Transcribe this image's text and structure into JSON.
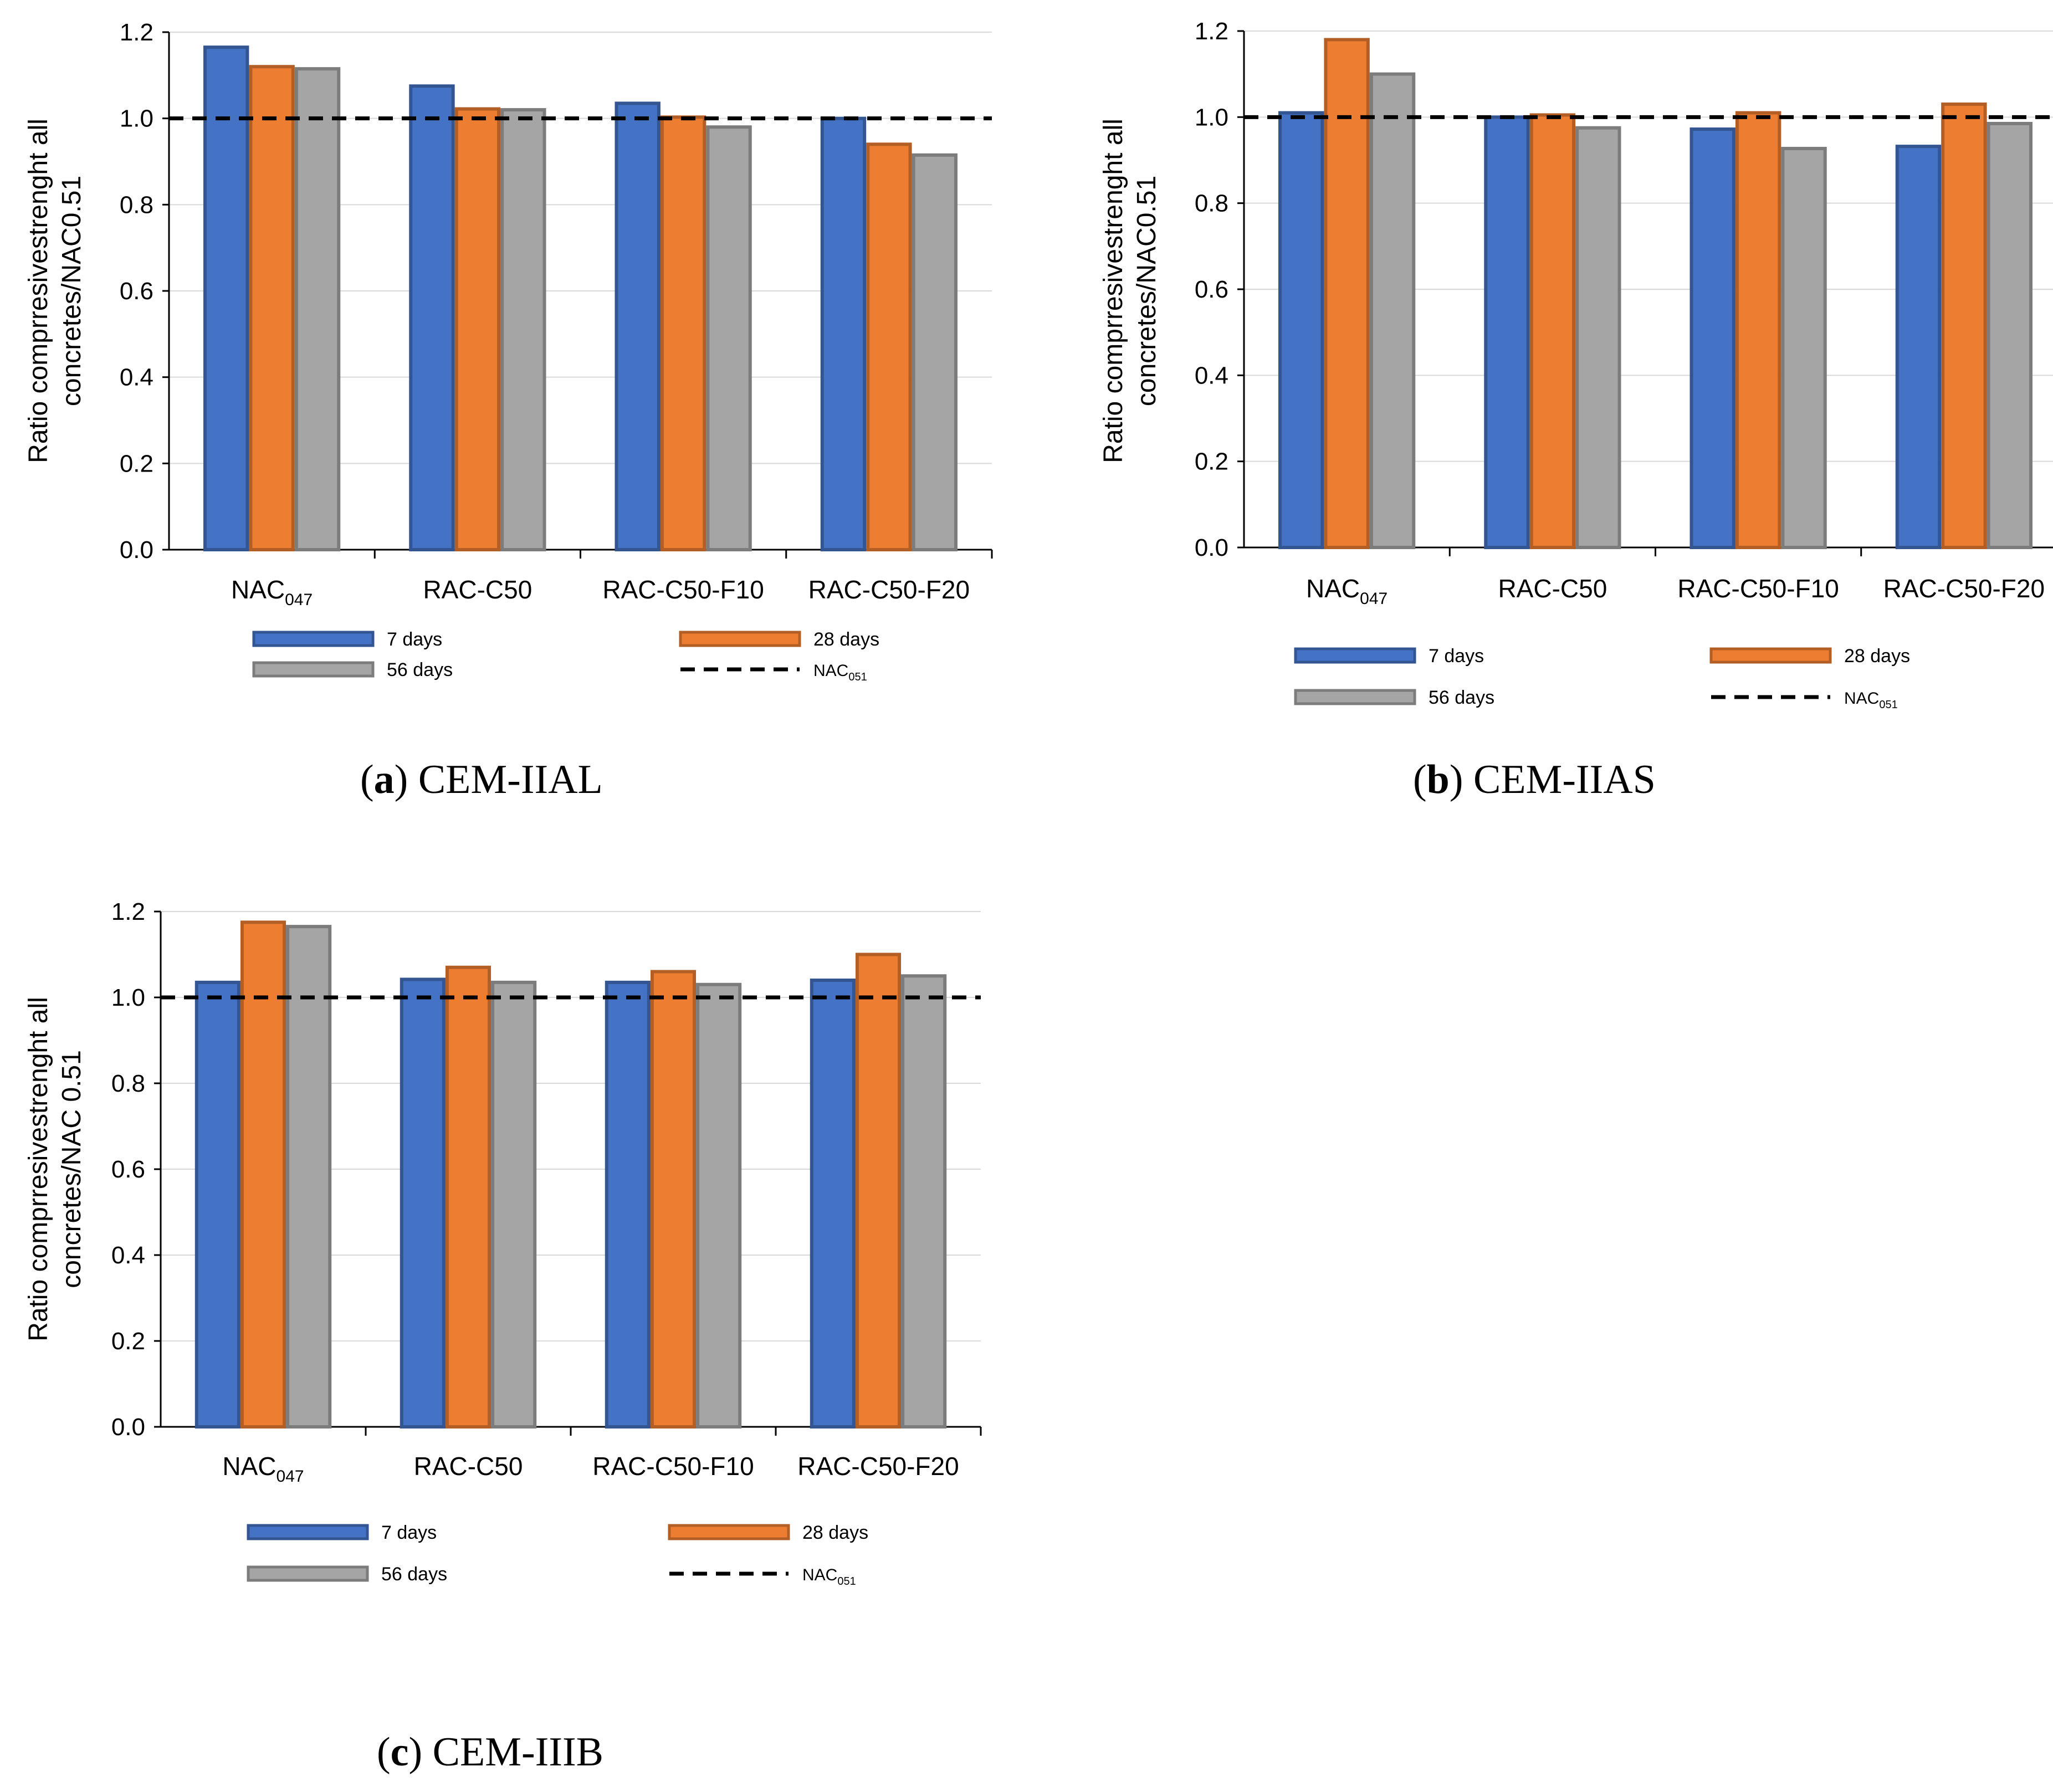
{
  "colors": {
    "7days": "#4472c4",
    "28days": "#ed7d31",
    "56days": "#a5a5a5",
    "reference": "#000000"
  },
  "chart_data": [
    {
      "type": "bar",
      "caption_label": "a",
      "caption_text": "CEM-IIAL",
      "ylabel_line1": "Ratio comprresivestrenght all",
      "ylabel_line2": "concretes/NAC0.51",
      "ylim": [
        0,
        1.2
      ],
      "yticks": [
        "0.0",
        "0.2",
        "0.4",
        "0.6",
        "0.8",
        "1.0",
        "1.2"
      ],
      "categories": [
        {
          "base": "NAC",
          "sub": "047"
        },
        {
          "base": "RAC-C50",
          "sub": ""
        },
        {
          "base": "RAC-C50-F10",
          "sub": ""
        },
        {
          "base": "RAC-C50-F20",
          "sub": ""
        }
      ],
      "series": [
        {
          "name": "7 days",
          "values": [
            1.165,
            1.075,
            1.035,
            1.0
          ]
        },
        {
          "name": "28 days",
          "values": [
            1.12,
            1.022,
            1.003,
            0.94
          ]
        },
        {
          "name": "56 days",
          "values": [
            1.115,
            1.02,
            0.98,
            0.915
          ]
        }
      ],
      "reference": {
        "base": "NAC",
        "sub": "051",
        "value": 1.0
      }
    },
    {
      "type": "bar",
      "caption_label": "b",
      "caption_text": "CEM-IIAS",
      "ylabel_line1": "Ratio comprresivestrenght all",
      "ylabel_line2": "concretes/NAC0.51",
      "ylim": [
        0,
        1.2
      ],
      "yticks": [
        "0.0",
        "0.2",
        "0.4",
        "0.6",
        "0.8",
        "1.0",
        "1.2"
      ],
      "categories": [
        {
          "base": "NAC",
          "sub": "047"
        },
        {
          "base": "RAC-C50",
          "sub": ""
        },
        {
          "base": "RAC-C50-F10",
          "sub": ""
        },
        {
          "base": "RAC-C50-F20",
          "sub": ""
        }
      ],
      "series": [
        {
          "name": "7 days",
          "values": [
            1.01,
            1.0,
            0.972,
            0.932
          ]
        },
        {
          "name": "28 days",
          "values": [
            1.18,
            1.005,
            1.01,
            1.03
          ]
        },
        {
          "name": "56 days",
          "values": [
            1.1,
            0.975,
            0.927,
            0.985
          ]
        }
      ],
      "reference": {
        "base": "NAC",
        "sub": "051",
        "value": 1.0
      }
    },
    {
      "type": "bar",
      "caption_label": "c",
      "caption_text": "CEM-IIIB",
      "ylabel_line1": "Ratio comprresivestrenght all",
      "ylabel_line2": "concretes/NAC 0.51",
      "ylim": [
        0,
        1.2
      ],
      "yticks": [
        "0.0",
        "0.2",
        "0.4",
        "0.6",
        "0.8",
        "1.0",
        "1.2"
      ],
      "categories": [
        {
          "base": "NAC",
          "sub": "047"
        },
        {
          "base": "RAC-C50",
          "sub": ""
        },
        {
          "base": "RAC-C50-F10",
          "sub": ""
        },
        {
          "base": "RAC-C50-F20",
          "sub": ""
        }
      ],
      "series": [
        {
          "name": "7 days",
          "values": [
            1.035,
            1.042,
            1.035,
            1.04
          ]
        },
        {
          "name": "28 days",
          "values": [
            1.175,
            1.07,
            1.06,
            1.1
          ]
        },
        {
          "name": "56 days",
          "values": [
            1.165,
            1.035,
            1.03,
            1.05
          ]
        }
      ],
      "reference": {
        "base": "NAC",
        "sub": "051",
        "value": 1.0
      }
    }
  ]
}
